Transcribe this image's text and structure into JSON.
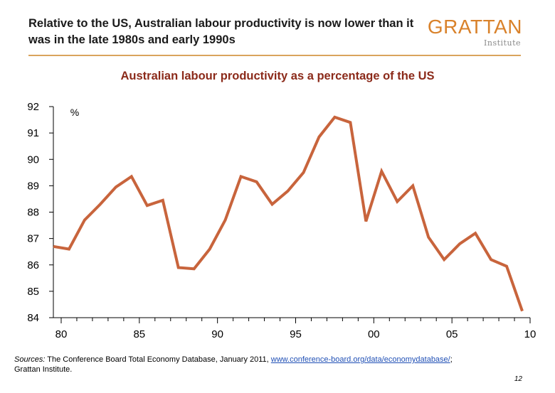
{
  "header": {
    "title": "Relative to the US, Australian labour productivity is now lower than it was in the late 1980s and early 1990s"
  },
  "logo": {
    "main": "GRATTAN",
    "sub": "Institute"
  },
  "colors": {
    "accent": "#d9822b",
    "line": "#c8643c",
    "title": "#8b2a1a",
    "rule": "#d9a45c"
  },
  "chart_data": {
    "type": "line",
    "title": "Australian labour productivity as a percentage of the US",
    "unit": "%",
    "xlabel": "",
    "ylabel": "",
    "ylim": [
      84,
      92
    ],
    "xlim": [
      1979.5,
      2010
    ],
    "x_tick_values": [
      1980,
      1985,
      1990,
      1995,
      2000,
      2005,
      2010
    ],
    "x_tick_labels": [
      "80",
      "85",
      "90",
      "95",
      "00",
      "05",
      "10"
    ],
    "y_ticks": [
      84,
      85,
      86,
      87,
      88,
      89,
      90,
      91,
      92
    ],
    "grid": false,
    "legend": "none",
    "series": [
      {
        "x": [
          1979.5,
          1980.5,
          1981.5,
          1982.5,
          1983.5,
          1984.5,
          1985.5,
          1986.5,
          1987.5,
          1988.5,
          1989.5,
          1990.5,
          1991.5,
          1992.5,
          1993.5,
          1994.5,
          1995.5,
          1996.5,
          1997.5,
          1998.5,
          1999.5,
          2000.5,
          2001.5,
          2002.5,
          2003.5,
          2004.5,
          2005.5,
          2006.5,
          2007.5,
          2008.5,
          2009.5
        ],
        "values": [
          86.7,
          86.6,
          87.7,
          88.3,
          88.95,
          89.35,
          88.25,
          88.45,
          85.9,
          85.85,
          86.6,
          87.7,
          89.35,
          89.15,
          88.3,
          88.8,
          89.5,
          90.85,
          91.6,
          91.4,
          87.65,
          89.55,
          88.4,
          89.0,
          87.05,
          86.2,
          86.8,
          87.2,
          86.2,
          85.95,
          84.25
        ]
      }
    ]
  },
  "footer": {
    "sources_prefix": "Sources:",
    "sources_text": "The Conference Board Total Economy Database, January 2011,",
    "sources_link": "www.conference-board.org/data/economydatabase/",
    "sources_suffix": ";",
    "sources_line2": "Grattan Institute.",
    "page_number": "12"
  }
}
